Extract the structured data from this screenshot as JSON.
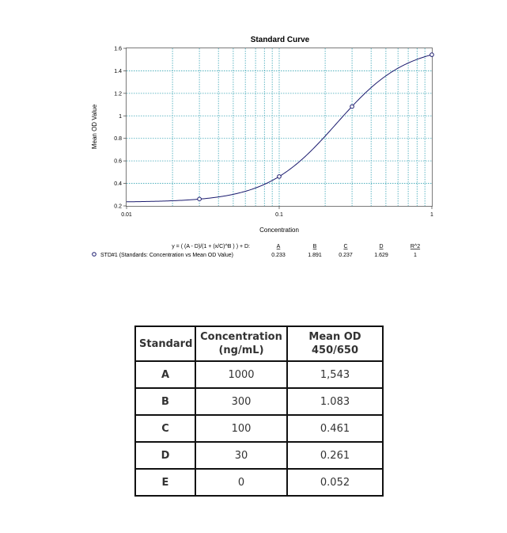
{
  "chart_data": {
    "type": "scatter",
    "title": "Standard Curve",
    "xlabel": "Concentration",
    "ylabel": "Mean OD Value",
    "x_scale": "log",
    "xlim": [
      0.01,
      1
    ],
    "ylim": [
      0.2,
      1.6
    ],
    "x_ticks": [
      "0.01",
      "0.1",
      "1"
    ],
    "y_ticks": [
      "0.2",
      "0.4",
      "0.6",
      "0.8",
      "1",
      "1.2",
      "1.4",
      "1.6"
    ],
    "grid": true,
    "series": [
      {
        "name": "STD#1 (Standards: Concentration vs Mean OD Value)",
        "points": [
          {
            "x": 0.03,
            "y": 0.261
          },
          {
            "x": 0.1,
            "y": 0.461
          },
          {
            "x": 0.3,
            "y": 1.083
          },
          {
            "x": 1,
            "y": 1.543
          }
        ]
      }
    ],
    "fit": {
      "equation": "y = ( (A - D)/(1 + (x/C)^B ) ) + D:",
      "headers": [
        "A",
        "B",
        "C",
        "D",
        "R^2"
      ],
      "values": [
        "0.233",
        "1.891",
        "0.237",
        "1.629",
        "1"
      ],
      "params": {
        "A": 0.233,
        "B": 1.891,
        "C": 0.237,
        "D": 1.629
      }
    },
    "colors": {
      "curve": "#1a1a6e",
      "grid": "#3aa5b5",
      "frame": "#7a7a7a",
      "marker": "#1a1a6e"
    }
  },
  "table": {
    "headers": [
      "Standard",
      "Concentration (ng/mL)",
      "Mean OD 450/650"
    ],
    "rows": [
      [
        "A",
        "1000",
        "1,543"
      ],
      [
        "B",
        "300",
        "1.083"
      ],
      [
        "C",
        "100",
        "0.461"
      ],
      [
        "D",
        "30",
        "0.261"
      ],
      [
        "E",
        "0",
        "0.052"
      ]
    ]
  }
}
